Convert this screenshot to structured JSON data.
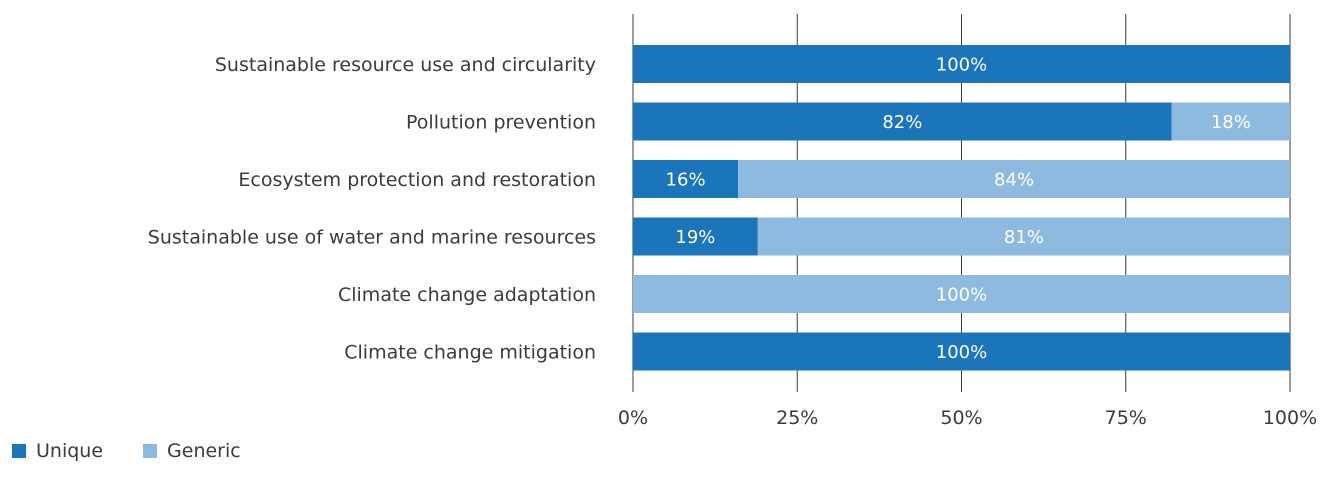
{
  "chart_data": {
    "type": "bar",
    "orientation": "horizontal",
    "stacked": true,
    "categories": [
      "Sustainable resource use and circularity",
      "Pollution prevention",
      "Ecosystem protection and restoration",
      "Sustainable use of water and marine resources",
      "Climate change adaptation",
      "Climate change mitigation"
    ],
    "series": [
      {
        "name": "Unique",
        "color": "#1b75bb",
        "values": [
          100,
          82,
          16,
          19,
          0,
          100
        ],
        "labels": [
          "100%",
          "82%",
          "16%",
          "19%",
          "",
          "100%"
        ]
      },
      {
        "name": "Generic",
        "color": "#8fbadf",
        "values": [
          0,
          18,
          84,
          81,
          100,
          0
        ],
        "labels": [
          "",
          "18%",
          "84%",
          "81%",
          "100%",
          ""
        ]
      }
    ],
    "xlim": [
      0,
      100
    ],
    "xticks": [
      0,
      25,
      50,
      75,
      100
    ],
    "xtick_labels": [
      "0%",
      "25%",
      "50%",
      "75%",
      "100%"
    ],
    "grid": "vertical",
    "legend_position": "bottom-left",
    "title": "",
    "xlabel": "",
    "ylabel": ""
  }
}
